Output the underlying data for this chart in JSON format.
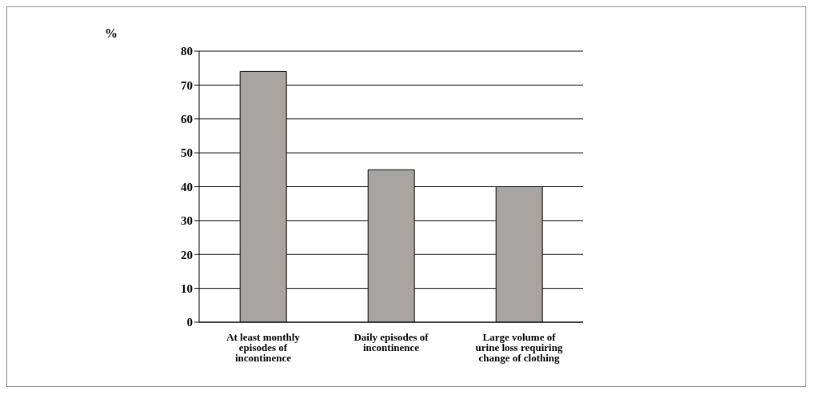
{
  "chart_data": {
    "type": "bar",
    "ylabel": "%",
    "categories": [
      "At least monthly episodes of incontinence",
      "Daily episodes of incontinence",
      "Large volume of urine loss requiring change of clothing"
    ],
    "values": [
      74,
      45,
      40
    ],
    "color": "#a8a4a2",
    "ylim": [
      0,
      80
    ],
    "yticks": [
      0,
      10,
      20,
      30,
      40,
      50,
      60,
      70,
      80
    ],
    "grid": "y"
  }
}
